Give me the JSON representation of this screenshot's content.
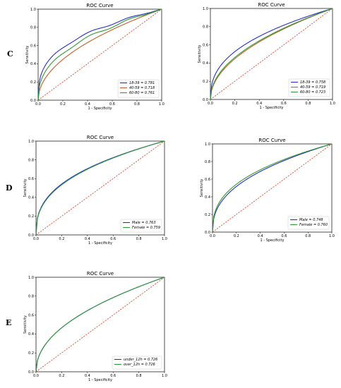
{
  "row_labels": [
    "C",
    "D",
    "E"
  ],
  "colors": {
    "blue": "#2a2fc0",
    "orange": "#c0602a",
    "green": "#2f9a35",
    "diagonal": "#d04020",
    "frame": "#000000"
  },
  "chart_data": [
    {
      "type": "line",
      "title": "ROC Curve",
      "xlabel": "1 - Specificity",
      "ylabel": "Sensitivity",
      "xlim": [
        0,
        1
      ],
      "ylim": [
        0,
        1
      ],
      "xticks": [
        "0.0",
        "0.2",
        "0.4",
        "0.6",
        "0.8",
        "1.0"
      ],
      "yticks": [
        "0.0",
        "0.2",
        "0.4",
        "0.6",
        "0.8",
        "1.0"
      ],
      "legend_position": "lower-right",
      "diagonal": true,
      "series": [
        {
          "name": "18-39 = 0.781",
          "color": "blue",
          "auc": 0.781
        },
        {
          "name": "40-59 = 0.718",
          "color": "orange",
          "auc": 0.718
        },
        {
          "name": "60-80 = 0.761",
          "color": "green",
          "auc": 0.761
        }
      ]
    },
    {
      "type": "line",
      "title": "ROC Curve",
      "xlabel": "1 - Specificity",
      "ylabel": "Sensitivity",
      "xlim": [
        0,
        1
      ],
      "ylim": [
        0,
        1
      ],
      "xticks": [
        "0.0",
        "0.2",
        "0.4",
        "0.6",
        "0.8",
        "1.0"
      ],
      "yticks": [
        "0.0",
        "0.2",
        "0.4",
        "0.6",
        "0.8",
        "1.0"
      ],
      "legend_position": "lower-right",
      "diagonal": true,
      "series": [
        {
          "name": "18-39 = 0.758",
          "color": "blue",
          "auc": 0.758
        },
        {
          "name": "40-59 = 0.719",
          "color": "orange",
          "auc": 0.719
        },
        {
          "name": "60-80 = 0.723",
          "color": "green",
          "auc": 0.723
        }
      ]
    },
    {
      "type": "line",
      "title": "ROC Curve",
      "xlabel": "1 - Specificity",
      "ylabel": "Sensitivity",
      "xlim": [
        0,
        1
      ],
      "ylim": [
        0,
        1
      ],
      "xticks": [
        "0.0",
        "0.2",
        "0.4",
        "0.6",
        "0.8",
        "1.0"
      ],
      "yticks": [
        "0.0",
        "0.2",
        "0.4",
        "0.6",
        "0.8",
        "1.0"
      ],
      "legend_position": "lower-right",
      "diagonal": true,
      "series": [
        {
          "name": "Male = 0.763",
          "color": "blue",
          "auc": 0.763
        },
        {
          "name": "Female = 0.759",
          "color": "green",
          "auc": 0.759
        }
      ]
    },
    {
      "type": "line",
      "title": "ROC Curve",
      "xlabel": "1 - Specificity",
      "ylabel": "Sensitivity",
      "xlim": [
        0,
        1
      ],
      "ylim": [
        0,
        1
      ],
      "xticks": [
        "0.0",
        "0.2",
        "0.4",
        "0.6",
        "0.8",
        "1.0"
      ],
      "yticks": [
        "0.0",
        "0.2",
        "0.4",
        "0.6",
        "0.8",
        "1.0"
      ],
      "legend_position": "lower-right",
      "diagonal": true,
      "series": [
        {
          "name": "Male = 0.748",
          "color": "blue",
          "auc": 0.748
        },
        {
          "name": "Female = 0.760",
          "color": "green",
          "auc": 0.76
        }
      ]
    },
    {
      "type": "line",
      "title": "ROC Curve",
      "xlabel": "1 - Specificity",
      "ylabel": "Sensitivity",
      "xlim": [
        0,
        1
      ],
      "ylim": [
        0,
        1
      ],
      "xticks": [
        "0.0",
        "0.2",
        "0.4",
        "0.6",
        "0.8",
        "1.0"
      ],
      "yticks": [
        "0.0",
        "0.2",
        "0.4",
        "0.6",
        "0.8",
        "1.0"
      ],
      "legend_position": "lower-right",
      "diagonal": true,
      "series": [
        {
          "name": "under_12h = 0.726",
          "color": "blue",
          "auc": 0.726
        },
        {
          "name": "over_12h = 0.726",
          "color": "green",
          "auc": 0.726
        }
      ]
    }
  ]
}
